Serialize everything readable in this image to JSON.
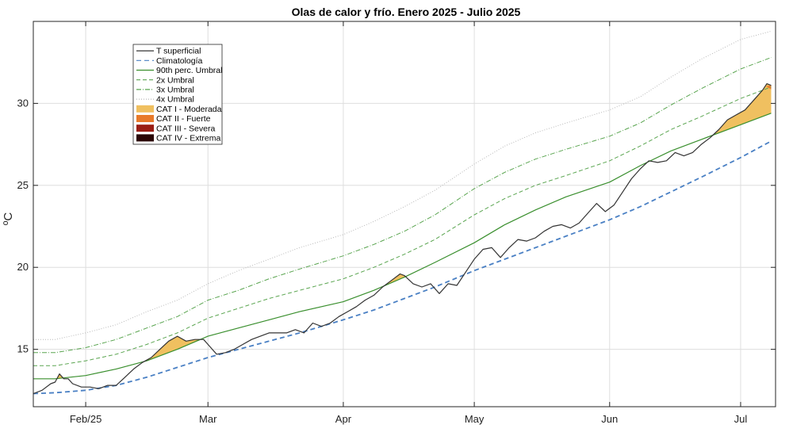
{
  "chart_data": {
    "type": "line",
    "title": "Olas de calor y frío. Enero 2025 - Julio 2025",
    "ylabel": "ºC",
    "ylim": [
      11.5,
      35
    ],
    "yticks": [
      15,
      20,
      25,
      30
    ],
    "xlim": [
      "2025-01-20",
      "2025-07-09"
    ],
    "xticks": [
      {
        "date": "2025-02-01",
        "label": "Feb/25"
      },
      {
        "date": "2025-03-01",
        "label": "Mar"
      },
      {
        "date": "2025-04-01",
        "label": "Apr"
      },
      {
        "date": "2025-05-01",
        "label": "May"
      },
      {
        "date": "2025-06-01",
        "label": "Jun"
      },
      {
        "date": "2025-07-01",
        "label": "Jul"
      }
    ],
    "grid": true,
    "legend_position": "top-left",
    "legend": [
      {
        "label": "T superficial",
        "kind": "line",
        "color": "#333333",
        "dash": ""
      },
      {
        "label": "Climatología",
        "kind": "line",
        "color": "#4a80c4",
        "dash": "6,4"
      },
      {
        "label": "90th perc. Umbral",
        "kind": "line",
        "color": "#3a8f2e",
        "dash": ""
      },
      {
        "label": "2x Umbral",
        "kind": "line",
        "color": "#5aa550",
        "dash": "5,3"
      },
      {
        "label": "3x Umbral",
        "kind": "line",
        "color": "#5aa550",
        "dash": "6,2,1,2"
      },
      {
        "label": "4x Umbral",
        "kind": "line",
        "color": "#b8b8b8",
        "dash": "1,2"
      },
      {
        "label": "CAT I - Moderada",
        "kind": "patch",
        "color": "#f0c060"
      },
      {
        "label": "CAT II - Fuerte",
        "kind": "patch",
        "color": "#e87a2a"
      },
      {
        "label": "CAT III - Severa",
        "kind": "patch",
        "color": "#9a1e14"
      },
      {
        "label": "CAT IV - Extrema",
        "kind": "patch",
        "color": "#2a0505"
      }
    ],
    "series": [
      {
        "name": "T superficial",
        "color": "#333333",
        "points": [
          [
            "2025-01-20",
            12.3
          ],
          [
            "2025-01-22",
            12.5
          ],
          [
            "2025-01-24",
            12.9
          ],
          [
            "2025-01-25",
            13.0
          ],
          [
            "2025-01-26",
            13.5
          ],
          [
            "2025-01-27",
            13.2
          ],
          [
            "2025-01-28",
            13.2
          ],
          [
            "2025-01-29",
            12.9
          ],
          [
            "2025-01-31",
            12.7
          ],
          [
            "2025-02-02",
            12.7
          ],
          [
            "2025-02-04",
            12.6
          ],
          [
            "2025-02-06",
            12.8
          ],
          [
            "2025-02-08",
            12.8
          ],
          [
            "2025-02-10",
            13.3
          ],
          [
            "2025-02-12",
            13.8
          ],
          [
            "2025-02-14",
            14.2
          ],
          [
            "2025-02-16",
            14.5
          ],
          [
            "2025-02-18",
            15.0
          ],
          [
            "2025-02-20",
            15.5
          ],
          [
            "2025-02-22",
            15.8
          ],
          [
            "2025-02-24",
            15.5
          ],
          [
            "2025-02-26",
            15.6
          ],
          [
            "2025-02-28",
            15.6
          ],
          [
            "2025-03-01",
            15.3
          ],
          [
            "2025-03-02",
            15.0
          ],
          [
            "2025-03-03",
            14.7
          ],
          [
            "2025-03-05",
            14.8
          ],
          [
            "2025-03-07",
            15.0
          ],
          [
            "2025-03-09",
            15.3
          ],
          [
            "2025-03-11",
            15.6
          ],
          [
            "2025-03-13",
            15.8
          ],
          [
            "2025-03-15",
            16.0
          ],
          [
            "2025-03-17",
            16.0
          ],
          [
            "2025-03-19",
            16.0
          ],
          [
            "2025-03-21",
            16.2
          ],
          [
            "2025-03-23",
            16.0
          ],
          [
            "2025-03-25",
            16.6
          ],
          [
            "2025-03-27",
            16.4
          ],
          [
            "2025-03-29",
            16.6
          ],
          [
            "2025-03-31",
            17.0
          ],
          [
            "2025-04-02",
            17.3
          ],
          [
            "2025-04-04",
            17.6
          ],
          [
            "2025-04-06",
            18.0
          ],
          [
            "2025-04-08",
            18.3
          ],
          [
            "2025-04-10",
            18.8
          ],
          [
            "2025-04-12",
            19.2
          ],
          [
            "2025-04-14",
            19.6
          ],
          [
            "2025-04-15",
            19.5
          ],
          [
            "2025-04-17",
            19.0
          ],
          [
            "2025-04-19",
            18.8
          ],
          [
            "2025-04-21",
            19.0
          ],
          [
            "2025-04-23",
            18.4
          ],
          [
            "2025-04-25",
            19.0
          ],
          [
            "2025-04-27",
            18.9
          ],
          [
            "2025-04-29",
            19.7
          ],
          [
            "2025-05-01",
            20.5
          ],
          [
            "2025-05-03",
            21.1
          ],
          [
            "2025-05-05",
            21.2
          ],
          [
            "2025-05-07",
            20.6
          ],
          [
            "2025-05-09",
            21.2
          ],
          [
            "2025-05-11",
            21.7
          ],
          [
            "2025-05-13",
            21.6
          ],
          [
            "2025-05-15",
            21.8
          ],
          [
            "2025-05-17",
            22.2
          ],
          [
            "2025-05-19",
            22.5
          ],
          [
            "2025-05-21",
            22.6
          ],
          [
            "2025-05-23",
            22.4
          ],
          [
            "2025-05-25",
            22.7
          ],
          [
            "2025-05-27",
            23.3
          ],
          [
            "2025-05-29",
            23.9
          ],
          [
            "2025-05-31",
            23.4
          ],
          [
            "2025-06-02",
            23.8
          ],
          [
            "2025-06-04",
            24.6
          ],
          [
            "2025-06-06",
            25.4
          ],
          [
            "2025-06-08",
            26.0
          ],
          [
            "2025-06-10",
            26.5
          ],
          [
            "2025-06-12",
            26.4
          ],
          [
            "2025-06-14",
            26.5
          ],
          [
            "2025-06-16",
            27.0
          ],
          [
            "2025-06-18",
            26.8
          ],
          [
            "2025-06-20",
            27.0
          ],
          [
            "2025-06-22",
            27.5
          ],
          [
            "2025-06-24",
            27.9
          ],
          [
            "2025-06-26",
            28.4
          ],
          [
            "2025-06-28",
            29.0
          ],
          [
            "2025-06-30",
            29.3
          ],
          [
            "2025-07-02",
            29.6
          ],
          [
            "2025-07-04",
            30.2
          ],
          [
            "2025-07-06",
            30.8
          ],
          [
            "2025-07-07",
            31.2
          ],
          [
            "2025-07-08",
            31.1
          ]
        ]
      },
      {
        "name": "Climatología",
        "color": "#4a80c4",
        "points": [
          [
            "2025-01-20",
            12.3
          ],
          [
            "2025-01-25",
            12.35
          ],
          [
            "2025-02-01",
            12.5
          ],
          [
            "2025-02-08",
            12.8
          ],
          [
            "2025-02-15",
            13.3
          ],
          [
            "2025-02-22",
            13.9
          ],
          [
            "2025-03-01",
            14.5
          ],
          [
            "2025-03-08",
            15.0
          ],
          [
            "2025-03-15",
            15.5
          ],
          [
            "2025-03-22",
            16.0
          ],
          [
            "2025-04-01",
            16.8
          ],
          [
            "2025-04-08",
            17.4
          ],
          [
            "2025-04-15",
            18.1
          ],
          [
            "2025-04-22",
            18.8
          ],
          [
            "2025-05-01",
            19.8
          ],
          [
            "2025-05-08",
            20.5
          ],
          [
            "2025-05-15",
            21.2
          ],
          [
            "2025-05-22",
            21.9
          ],
          [
            "2025-06-01",
            22.9
          ],
          [
            "2025-06-08",
            23.7
          ],
          [
            "2025-06-15",
            24.6
          ],
          [
            "2025-06-22",
            25.5
          ],
          [
            "2025-07-01",
            26.7
          ],
          [
            "2025-07-08",
            27.7
          ]
        ]
      },
      {
        "name": "90th perc. Umbral",
        "color": "#3a8f2e",
        "points": [
          [
            "2025-01-20",
            13.2
          ],
          [
            "2025-01-25",
            13.2
          ],
          [
            "2025-02-01",
            13.4
          ],
          [
            "2025-02-08",
            13.8
          ],
          [
            "2025-02-15",
            14.3
          ],
          [
            "2025-02-22",
            15.0
          ],
          [
            "2025-03-01",
            15.8
          ],
          [
            "2025-03-08",
            16.3
          ],
          [
            "2025-03-15",
            16.8
          ],
          [
            "2025-03-22",
            17.3
          ],
          [
            "2025-04-01",
            17.9
          ],
          [
            "2025-04-08",
            18.6
          ],
          [
            "2025-04-15",
            19.4
          ],
          [
            "2025-04-22",
            20.3
          ],
          [
            "2025-05-01",
            21.5
          ],
          [
            "2025-05-08",
            22.6
          ],
          [
            "2025-05-15",
            23.5
          ],
          [
            "2025-05-22",
            24.3
          ],
          [
            "2025-06-01",
            25.2
          ],
          [
            "2025-06-08",
            26.2
          ],
          [
            "2025-06-15",
            27.1
          ],
          [
            "2025-06-22",
            27.8
          ],
          [
            "2025-07-01",
            28.7
          ],
          [
            "2025-07-08",
            29.4
          ]
        ]
      },
      {
        "name": "2x Umbral",
        "color": "#5aa550",
        "points": [
          [
            "2025-01-20",
            14.0
          ],
          [
            "2025-01-25",
            14.0
          ],
          [
            "2025-02-01",
            14.3
          ],
          [
            "2025-02-08",
            14.7
          ],
          [
            "2025-02-15",
            15.3
          ],
          [
            "2025-02-22",
            16.0
          ],
          [
            "2025-03-01",
            16.9
          ],
          [
            "2025-03-08",
            17.5
          ],
          [
            "2025-03-15",
            18.1
          ],
          [
            "2025-03-22",
            18.6
          ],
          [
            "2025-04-01",
            19.3
          ],
          [
            "2025-04-08",
            20.0
          ],
          [
            "2025-04-15",
            20.8
          ],
          [
            "2025-04-22",
            21.7
          ],
          [
            "2025-05-01",
            23.2
          ],
          [
            "2025-05-08",
            24.2
          ],
          [
            "2025-05-15",
            25.0
          ],
          [
            "2025-05-22",
            25.6
          ],
          [
            "2025-06-01",
            26.5
          ],
          [
            "2025-06-08",
            27.4
          ],
          [
            "2025-06-15",
            28.4
          ],
          [
            "2025-06-22",
            29.2
          ],
          [
            "2025-07-01",
            30.3
          ],
          [
            "2025-07-08",
            31.0
          ]
        ]
      },
      {
        "name": "3x Umbral",
        "color": "#5aa550",
        "points": [
          [
            "2025-01-20",
            14.8
          ],
          [
            "2025-01-25",
            14.8
          ],
          [
            "2025-02-01",
            15.1
          ],
          [
            "2025-02-08",
            15.6
          ],
          [
            "2025-02-15",
            16.3
          ],
          [
            "2025-02-22",
            17.0
          ],
          [
            "2025-03-01",
            18.0
          ],
          [
            "2025-03-08",
            18.6
          ],
          [
            "2025-03-15",
            19.3
          ],
          [
            "2025-03-22",
            19.9
          ],
          [
            "2025-04-01",
            20.7
          ],
          [
            "2025-04-08",
            21.4
          ],
          [
            "2025-04-15",
            22.2
          ],
          [
            "2025-04-22",
            23.2
          ],
          [
            "2025-05-01",
            24.8
          ],
          [
            "2025-05-08",
            25.8
          ],
          [
            "2025-05-15",
            26.6
          ],
          [
            "2025-05-22",
            27.2
          ],
          [
            "2025-06-01",
            28.0
          ],
          [
            "2025-06-08",
            28.8
          ],
          [
            "2025-06-15",
            29.9
          ],
          [
            "2025-06-22",
            30.9
          ],
          [
            "2025-07-01",
            32.1
          ],
          [
            "2025-07-08",
            32.8
          ]
        ]
      },
      {
        "name": "4x Umbral",
        "color": "#b8b8b8",
        "points": [
          [
            "2025-01-20",
            15.6
          ],
          [
            "2025-01-25",
            15.6
          ],
          [
            "2025-02-01",
            16.0
          ],
          [
            "2025-02-08",
            16.5
          ],
          [
            "2025-02-15",
            17.3
          ],
          [
            "2025-02-22",
            18.0
          ],
          [
            "2025-03-01",
            19.0
          ],
          [
            "2025-03-08",
            19.8
          ],
          [
            "2025-03-15",
            20.5
          ],
          [
            "2025-03-22",
            21.2
          ],
          [
            "2025-04-01",
            22.0
          ],
          [
            "2025-04-08",
            22.8
          ],
          [
            "2025-04-15",
            23.7
          ],
          [
            "2025-04-22",
            24.7
          ],
          [
            "2025-05-01",
            26.3
          ],
          [
            "2025-05-08",
            27.4
          ],
          [
            "2025-05-15",
            28.2
          ],
          [
            "2025-05-22",
            28.8
          ],
          [
            "2025-06-01",
            29.6
          ],
          [
            "2025-06-08",
            30.4
          ],
          [
            "2025-06-15",
            31.6
          ],
          [
            "2025-06-22",
            32.7
          ],
          [
            "2025-07-01",
            33.9
          ],
          [
            "2025-07-08",
            34.4
          ]
        ]
      }
    ]
  }
}
